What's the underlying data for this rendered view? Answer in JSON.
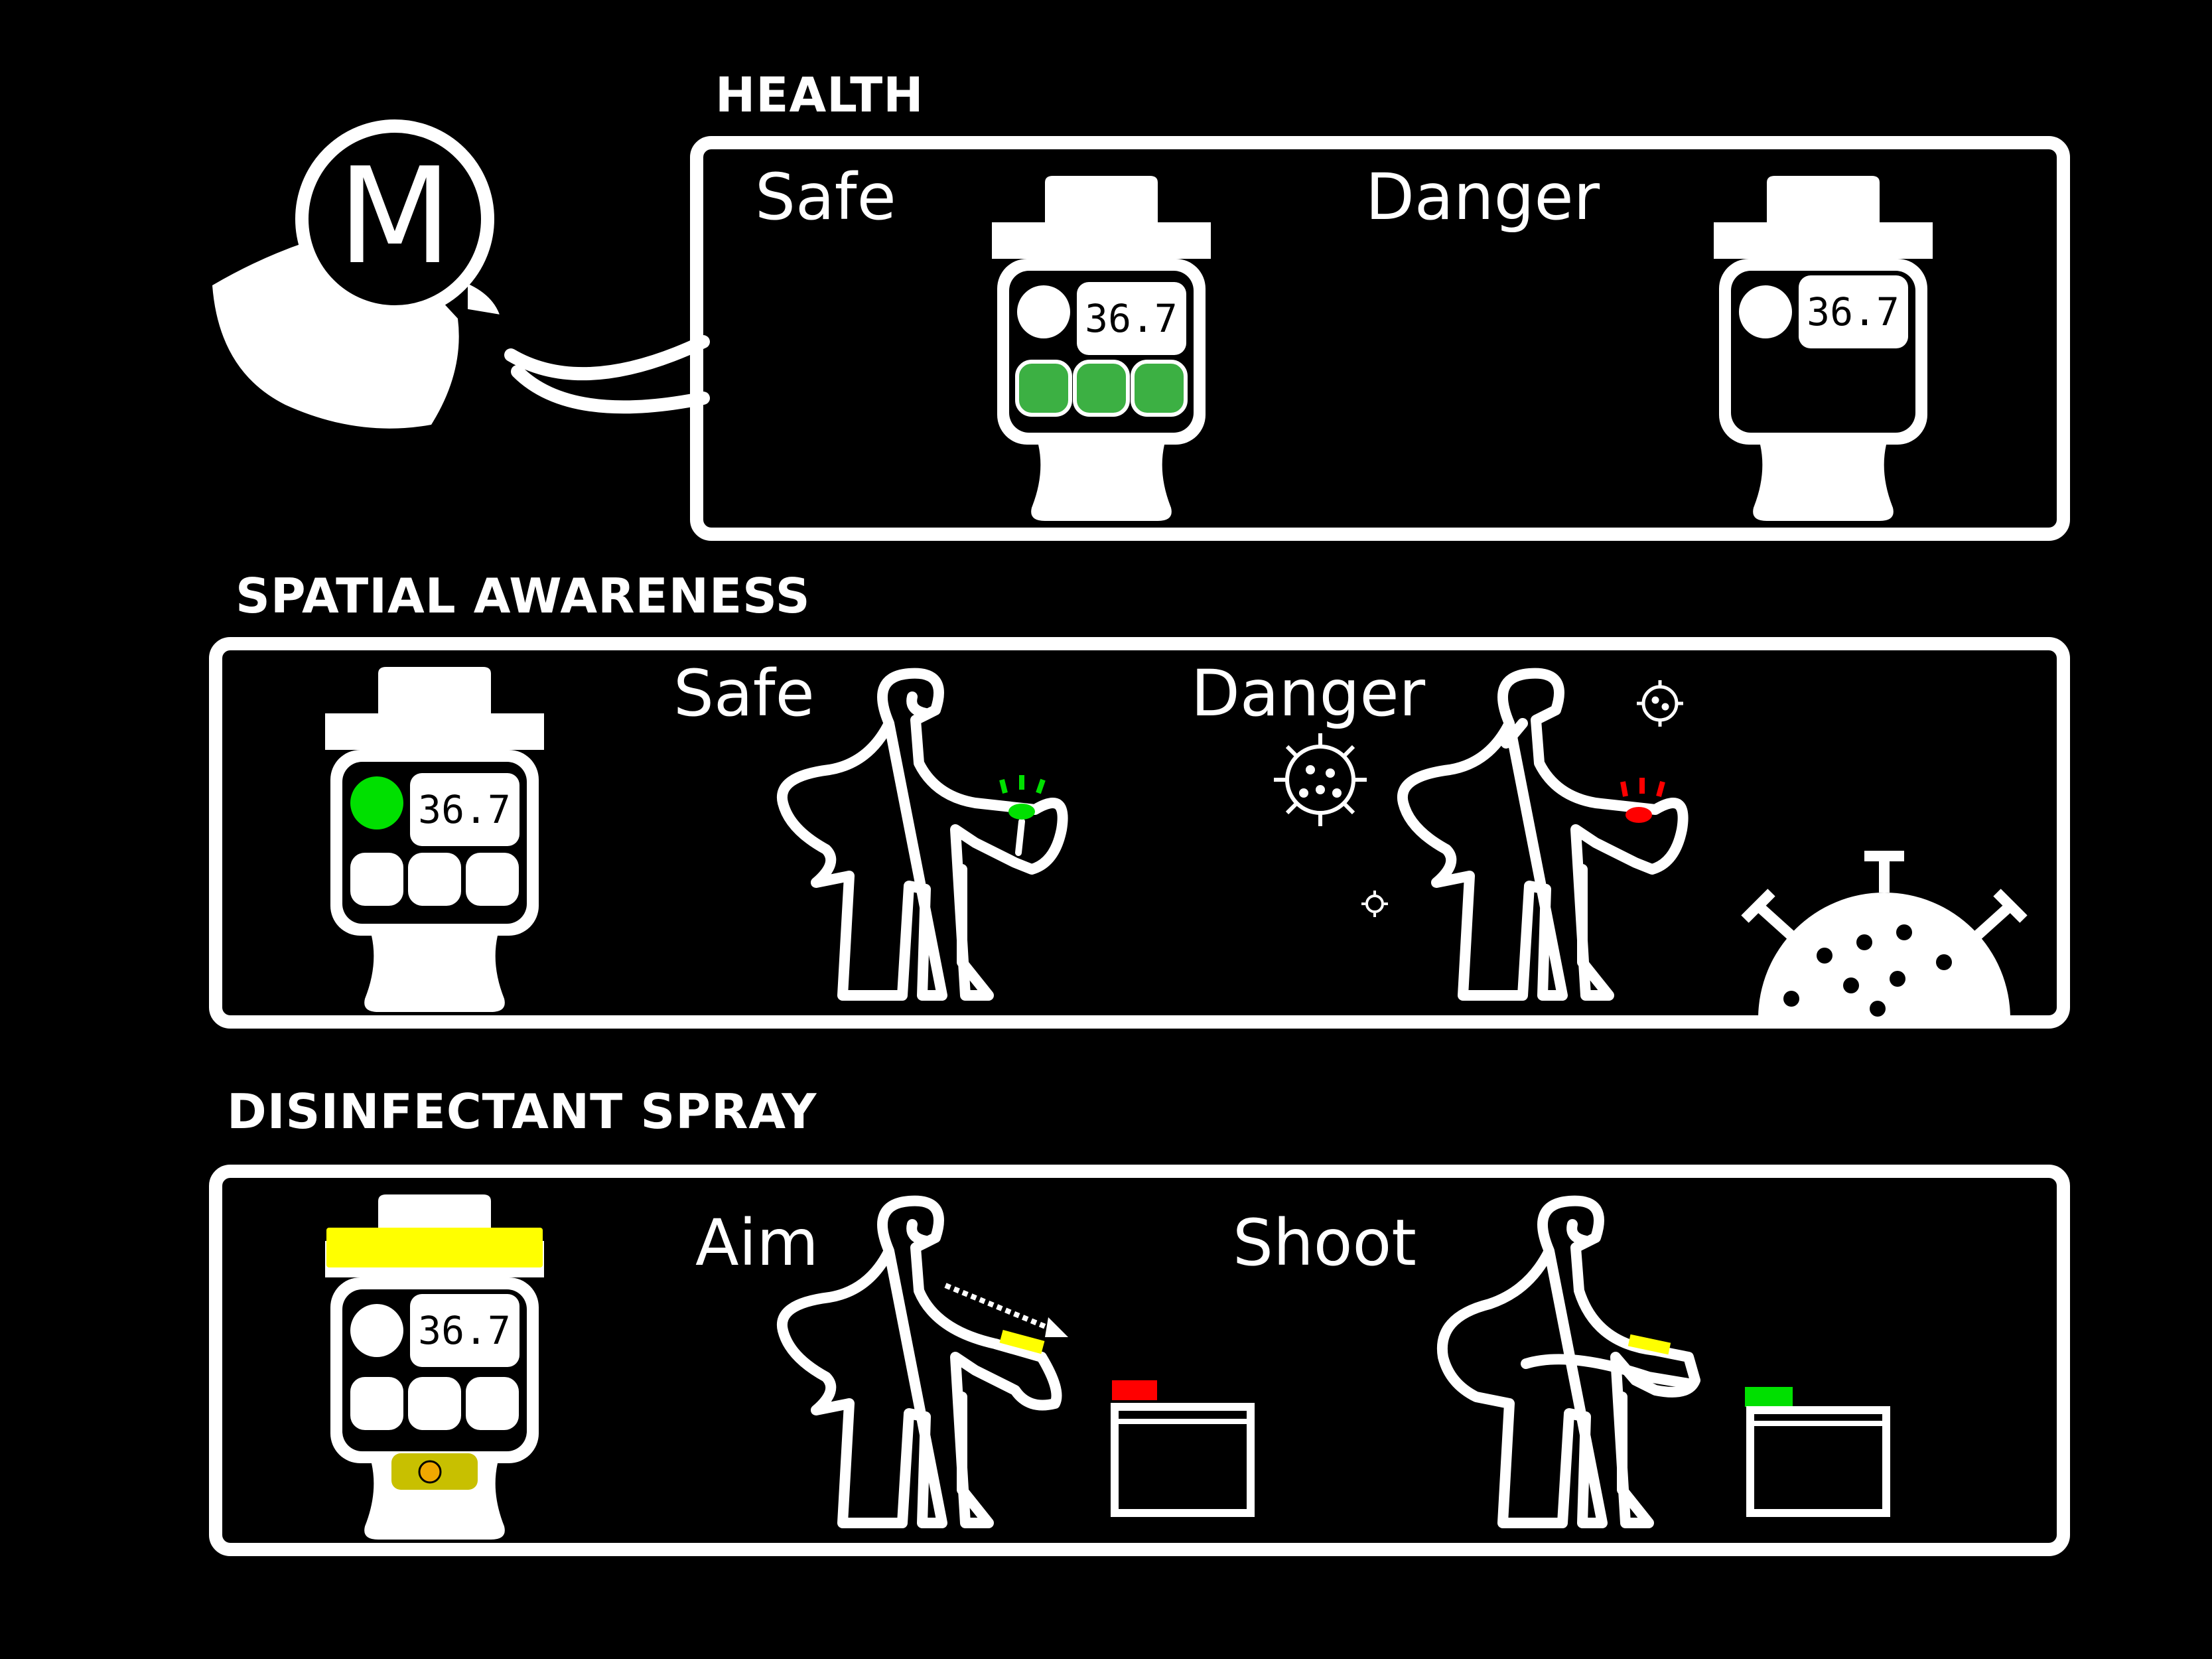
{
  "sections": {
    "health": {
      "title": "HEALTH",
      "safe_label": "Safe",
      "danger_label": "Danger"
    },
    "spatial": {
      "title": "SPATIAL AWARENESS",
      "safe_label": "Safe",
      "danger_label": "Danger"
    },
    "spray": {
      "title": "DISINFECTANT SPRAY",
      "aim_label": "Aim",
      "shoot_label": "Shoot"
    }
  },
  "watch_readout": "36.7",
  "logo_letter": "M",
  "colors": {
    "green_button": "#3cb043",
    "bright_green": "#00e000",
    "red": "#ff0000",
    "yellow": "#ffff00",
    "olive": "#c8c000",
    "orange": "#f0a800"
  },
  "icons": [
    "mask-logo-icon",
    "smartwatch-icon",
    "person-icon",
    "virus-icon",
    "container-icon"
  ]
}
